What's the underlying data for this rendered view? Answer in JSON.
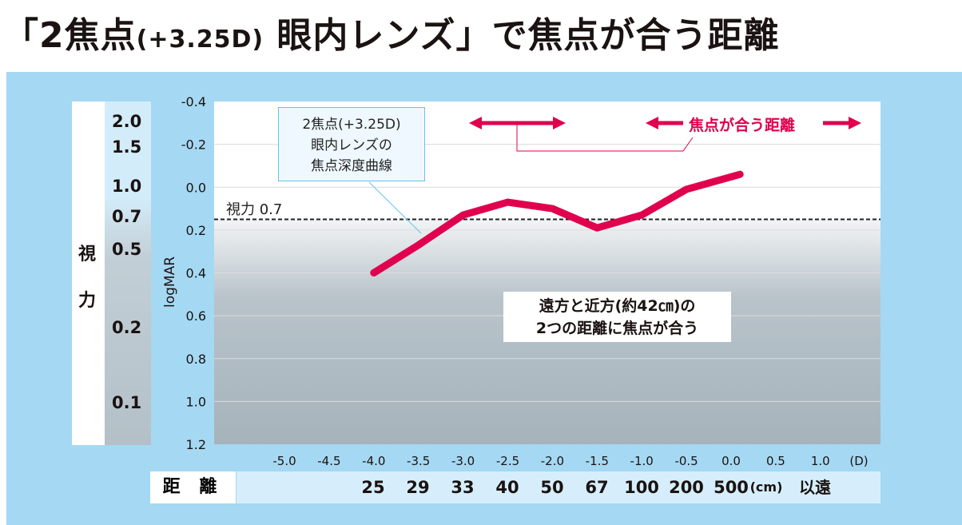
{
  "title": {
    "open": "「",
    "main": "2焦点",
    "paren": "(+3.25D)",
    "lens": " 眼内レンズ",
    "close": "」",
    "rest": "で焦点が合う距離"
  },
  "colors": {
    "panel": "#a5d8f3",
    "line": "#e0004d",
    "accent": "#e0004d"
  },
  "vision_scale": {
    "label_1": "視",
    "label_2": "力",
    "values": [
      "2.0",
      "1.5",
      "1.0",
      "0.7",
      "0.5",
      "0.2",
      "0.1"
    ]
  },
  "annotation": {
    "line1": "2焦点(+3.25D)",
    "line2": "眼内レンズの",
    "line3": "焦点深度曲線"
  },
  "focus_label": "焦点が合う距離",
  "threshold_label": "視力 0.7",
  "note": {
    "line1": "遠方と近方(約42㎝)の",
    "line2": "2つの距離に焦点が合う"
  },
  "distance_row": {
    "label": "距 離",
    "values": [
      "25",
      "29",
      "33",
      "40",
      "50",
      "67",
      "100",
      "200",
      "500"
    ],
    "unit": "(cm)",
    "beyond": "以遠"
  },
  "chart_data": {
    "type": "line",
    "xlabel": "(D)",
    "ylabel": "logMAR",
    "xlim": [
      -5.5,
      1.7
    ],
    "ylim": [
      -0.4,
      1.2
    ],
    "y_inverted": true,
    "x_ticks": [
      "-5.0",
      "-4.5",
      "-4.0",
      "-3.5",
      "-3.0",
      "-2.5",
      "-2.0",
      "-1.5",
      "-1.0",
      "-0.5",
      "0.0",
      "0.5",
      "1.0"
    ],
    "y_ticks": [
      "-0.4",
      "-0.2",
      "0.0",
      "0.2",
      "0.4",
      "0.6",
      "0.8",
      "1.0",
      "1.2"
    ],
    "grid": true,
    "series": [
      {
        "x": [
          -4.0,
          -3.5,
          -3.0,
          -2.5,
          -2.0,
          -1.5,
          -1.0,
          -0.5,
          0.1
        ],
        "y": [
          0.4,
          0.27,
          0.13,
          0.07,
          0.1,
          0.19,
          0.13,
          0.01,
          -0.06
        ]
      }
    ],
    "threshold": 0.15
  }
}
